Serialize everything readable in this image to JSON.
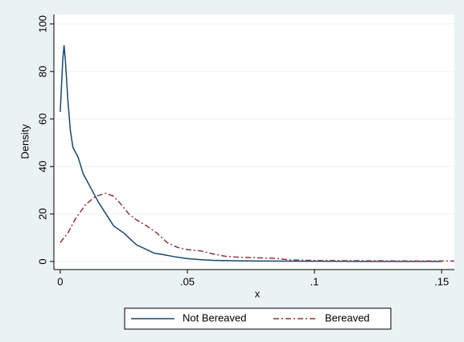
{
  "chart_data": {
    "type": "line",
    "xlabel": "x",
    "ylabel": "Density",
    "xlim": [
      -0.0025,
      0.155
    ],
    "ylim": [
      -3.4,
      104
    ],
    "xticks": [
      {
        "value": 0,
        "label": "0"
      },
      {
        "value": 0.05,
        "label": ".05"
      },
      {
        "value": 0.1,
        "label": ".1"
      },
      {
        "value": 0.15,
        "label": ".15"
      }
    ],
    "yticks": [
      0,
      20,
      40,
      60,
      80,
      100
    ],
    "grid": true,
    "legend": "bottom",
    "series": [
      {
        "name": "Not Bereaved",
        "color": "#1a476f",
        "dash": "solid",
        "x": [
          0,
          0.001,
          0.0015,
          0.002,
          0.003,
          0.004,
          0.005,
          0.007,
          0.009,
          0.012,
          0.015,
          0.018,
          0.021,
          0.025,
          0.03,
          0.033,
          0.037,
          0.04,
          0.045,
          0.05,
          0.055,
          0.06,
          0.07,
          0.08,
          0.1,
          0.12,
          0.15
        ],
        "values": [
          63,
          85,
          91,
          85,
          68,
          55,
          48,
          44,
          37,
          31,
          25,
          20,
          15,
          12,
          7,
          5.5,
          3.5,
          3,
          2,
          1.2,
          0.8,
          0.5,
          0.3,
          0.2,
          0.1,
          0.05,
          0.02
        ]
      },
      {
        "name": "Bereaved",
        "color": "#90353b",
        "dash": "dashdot",
        "x": [
          0,
          0.003,
          0.006,
          0.01,
          0.014,
          0.018,
          0.021,
          0.024,
          0.027,
          0.03,
          0.034,
          0.038,
          0.042,
          0.046,
          0.05,
          0.055,
          0.06,
          0.065,
          0.07,
          0.08,
          0.085,
          0.09,
          0.1,
          0.12,
          0.14,
          0.155
        ],
        "values": [
          8,
          12,
          18,
          24,
          27.5,
          28.7,
          27.5,
          24,
          20,
          17.5,
          15,
          12,
          8,
          6,
          5,
          4.5,
          3.2,
          2.2,
          1.8,
          1.5,
          1.3,
          0.7,
          0.4,
          0.3,
          0.2,
          0.2
        ]
      }
    ]
  }
}
